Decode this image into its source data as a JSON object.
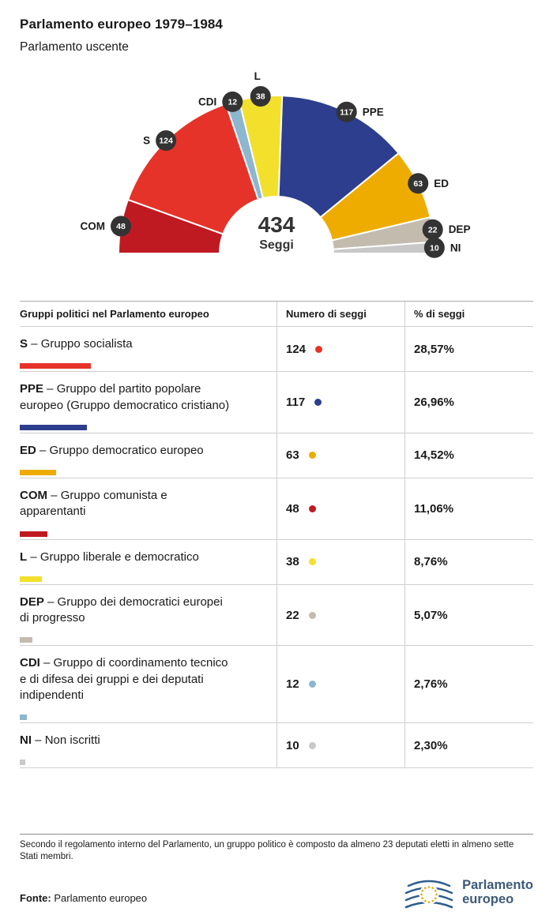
{
  "header": {
    "title": "Parlamento europeo 1979–1984",
    "subtitle": "Parlamento uscente"
  },
  "chart_data": {
    "type": "pie",
    "variant": "hemicycle-half-donut",
    "title": "Parlamento europeo 1979–1984",
    "total": 434,
    "total_label": "434",
    "total_sublabel": "Seggi",
    "badge_color": "#333333",
    "hemicycle_order": [
      "COM",
      "S",
      "CDI",
      "L",
      "PPE",
      "ED",
      "DEP",
      "NI"
    ],
    "groups": [
      {
        "abbr": "S",
        "name": "Gruppo socialista",
        "seats": 124,
        "percent": "28,57%",
        "color": "#e63329"
      },
      {
        "abbr": "PPE",
        "name": "Gruppo del partito popolare europeo (Gruppo democratico cristiano)",
        "seats": 117,
        "percent": "26,96%",
        "color": "#2d3e8e"
      },
      {
        "abbr": "ED",
        "name": "Gruppo democratico europeo",
        "seats": 63,
        "percent": "14,52%",
        "color": "#eeac00"
      },
      {
        "abbr": "COM",
        "name": "Gruppo comunista e apparentanti",
        "seats": 48,
        "percent": "11,06%",
        "color": "#bf1a22"
      },
      {
        "abbr": "L",
        "name": "Gruppo liberale e democratico",
        "seats": 38,
        "percent": "8,76%",
        "color": "#f3e02c"
      },
      {
        "abbr": "DEP",
        "name": "Gruppo dei democratici europei di progresso",
        "seats": 22,
        "percent": "5,07%",
        "color": "#c3bcae"
      },
      {
        "abbr": "CDI",
        "name": "Gruppo di coordinamento tecnico e di difesa dei gruppi e dei deputati indipendenti",
        "seats": 12,
        "percent": "2,76%",
        "color": "#8cb7ce"
      },
      {
        "abbr": "NI",
        "name": "Non iscritti",
        "seats": 10,
        "percent": "2,30%",
        "color": "#c8c8c8"
      }
    ]
  },
  "table": {
    "headers": [
      "Gruppi politici nel Parlamento europeo",
      "Numero di seggi",
      "% di seggi"
    ],
    "name_separator": "–"
  },
  "footer": {
    "note": "Secondo il regolamento interno del Parlamento, un gruppo politico è composto da almeno 23 deputati eletti in almeno sette Stati membri.",
    "source_label": "Fonte:",
    "source": "Parlamento europeo",
    "logo_line1": "Parlamento",
    "logo_line2": "europeo"
  }
}
